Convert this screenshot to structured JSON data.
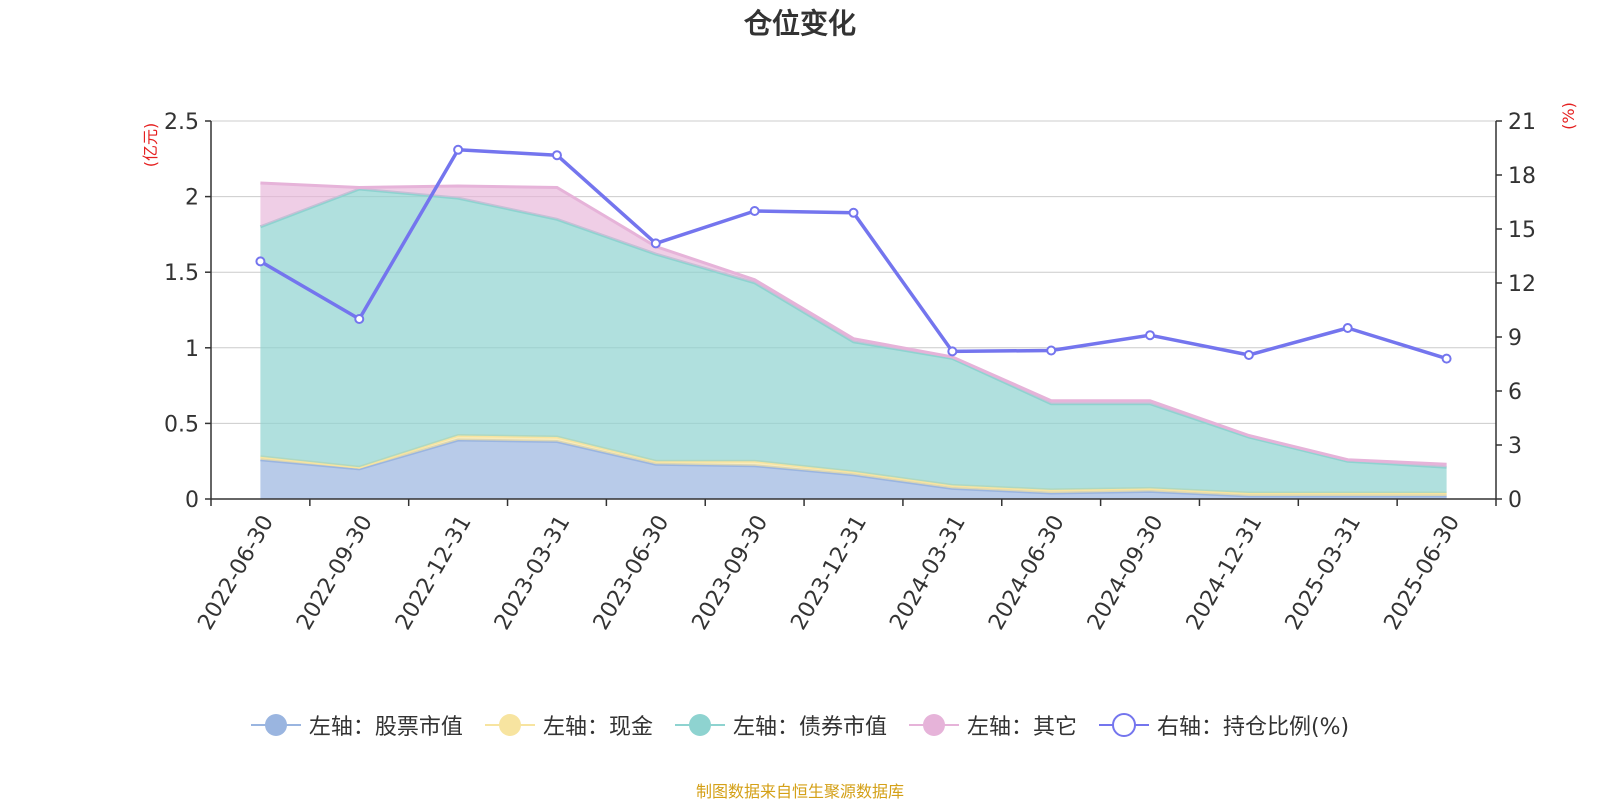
{
  "title": "仓位变化",
  "source_note": "制图数据来自恒生聚源数据库",
  "colors": {
    "stock": "#9ab5e0",
    "cash": "#f7e4a0",
    "bond": "#8ed3d0",
    "other": "#e6b3d9",
    "ratio": "#7475ee",
    "axis_unit": "#e52020",
    "grid": "#cccccc",
    "axis": "#333333"
  },
  "legend": [
    {
      "label": "左轴：股票市值",
      "color": "#9ab5e0",
      "marker": "filled-circle"
    },
    {
      "label": "左轴：现金",
      "color": "#f7e4a0",
      "marker": "filled-circle"
    },
    {
      "label": "左轴：债券市值",
      "color": "#8ed3d0",
      "marker": "filled-circle"
    },
    {
      "label": "左轴：其它",
      "color": "#e6b3d9",
      "marker": "filled-circle"
    },
    {
      "label": "右轴：持仓比例(%)",
      "color": "#7475ee",
      "marker": "hollow-circle"
    }
  ],
  "chart_data": {
    "type": "area",
    "title": "仓位变化",
    "categories": [
      "2022-06-30",
      "2022-09-30",
      "2022-12-31",
      "2023-03-31",
      "2023-06-30",
      "2023-09-30",
      "2023-12-31",
      "2024-03-31",
      "2024-06-30",
      "2024-09-30",
      "2024-12-31",
      "2025-03-31",
      "2025-06-30"
    ],
    "y_left": {
      "unit": "(亿元)",
      "min": 0,
      "max": 2.5,
      "ticks": [
        0,
        0.5,
        1,
        1.5,
        2,
        2.5
      ],
      "tick_labels": [
        "0",
        "0.5",
        "1",
        "1.5",
        "2",
        "2.5"
      ]
    },
    "y_right": {
      "unit": "(%)",
      "min": 0,
      "max": 21,
      "ticks": [
        0,
        3,
        6,
        9,
        12,
        15,
        18,
        21
      ],
      "tick_labels": [
        "0",
        "3",
        "6",
        "9",
        "12",
        "15",
        "18",
        "21"
      ]
    },
    "stacked": true,
    "series": [
      {
        "name": "左轴：股票市值",
        "axis": "left",
        "type": "area",
        "values": [
          0.26,
          0.2,
          0.39,
          0.38,
          0.23,
          0.22,
          0.16,
          0.07,
          0.04,
          0.05,
          0.02,
          0.02,
          0.02
        ]
      },
      {
        "name": "左轴：现金",
        "axis": "left",
        "type": "area",
        "values": [
          0.02,
          0.01,
          0.03,
          0.03,
          0.02,
          0.03,
          0.02,
          0.02,
          0.02,
          0.02,
          0.02,
          0.02,
          0.02
        ]
      },
      {
        "name": "左轴：债券市值",
        "axis": "left",
        "type": "area",
        "values": [
          1.52,
          1.84,
          1.57,
          1.44,
          1.37,
          1.18,
          0.86,
          0.84,
          0.57,
          0.56,
          0.37,
          0.21,
          0.17
        ]
      },
      {
        "name": "左轴：其它",
        "axis": "left",
        "type": "area",
        "values": [
          0.29,
          0.01,
          0.08,
          0.21,
          0.05,
          0.02,
          0.02,
          0.01,
          0.02,
          0.02,
          0.01,
          0.01,
          0.02
        ]
      },
      {
        "name": "右轴：持仓比例(%)",
        "axis": "right",
        "type": "line",
        "values": [
          13.2,
          10.0,
          19.4,
          19.1,
          14.2,
          16.0,
          15.9,
          8.2,
          8.25,
          9.1,
          8.0,
          9.5,
          7.8
        ]
      }
    ],
    "grid": true,
    "legend_position": "bottom"
  }
}
